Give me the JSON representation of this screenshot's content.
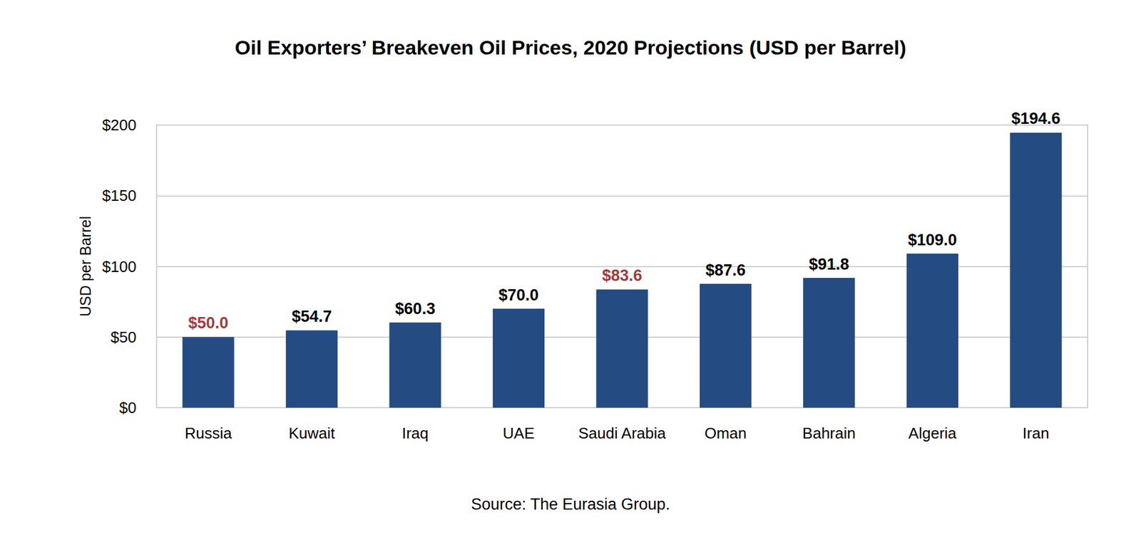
{
  "chart_data": {
    "type": "bar",
    "title": "Oil Exporters’ Breakeven Oil Prices, 2020 Projections (USD per Barrel)",
    "y_label": "USD per Barrel",
    "source": "Source: The Eurasia Group.",
    "categories": [
      "Russia",
      "Kuwait",
      "Iraq",
      "UAE",
      "Saudi Arabia",
      "Oman",
      "Bahrain",
      "Algeria",
      "Iran"
    ],
    "values": [
      50.0,
      54.7,
      60.3,
      70.0,
      83.6,
      87.6,
      91.8,
      109.0,
      194.6
    ],
    "value_labels": [
      "$50.0",
      "$54.7",
      "$60.3",
      "$70.0",
      "$83.6",
      "$87.6",
      "$91.8",
      "$109.0",
      "$194.6"
    ],
    "value_label_colors": [
      "#a33a3a",
      "#000000",
      "#000000",
      "#000000",
      "#a33a3a",
      "#000000",
      "#000000",
      "#000000",
      "#000000"
    ],
    "color": "#244b82",
    "ylim": [
      0,
      200
    ],
    "yticks": [
      {
        "value": 0,
        "label": "$0"
      },
      {
        "value": 50,
        "label": "$50"
      },
      {
        "value": 100,
        "label": "$100"
      },
      {
        "value": 150,
        "label": "$150"
      },
      {
        "value": 200,
        "label": "$200"
      }
    ],
    "grid": true,
    "data_labels": true
  }
}
